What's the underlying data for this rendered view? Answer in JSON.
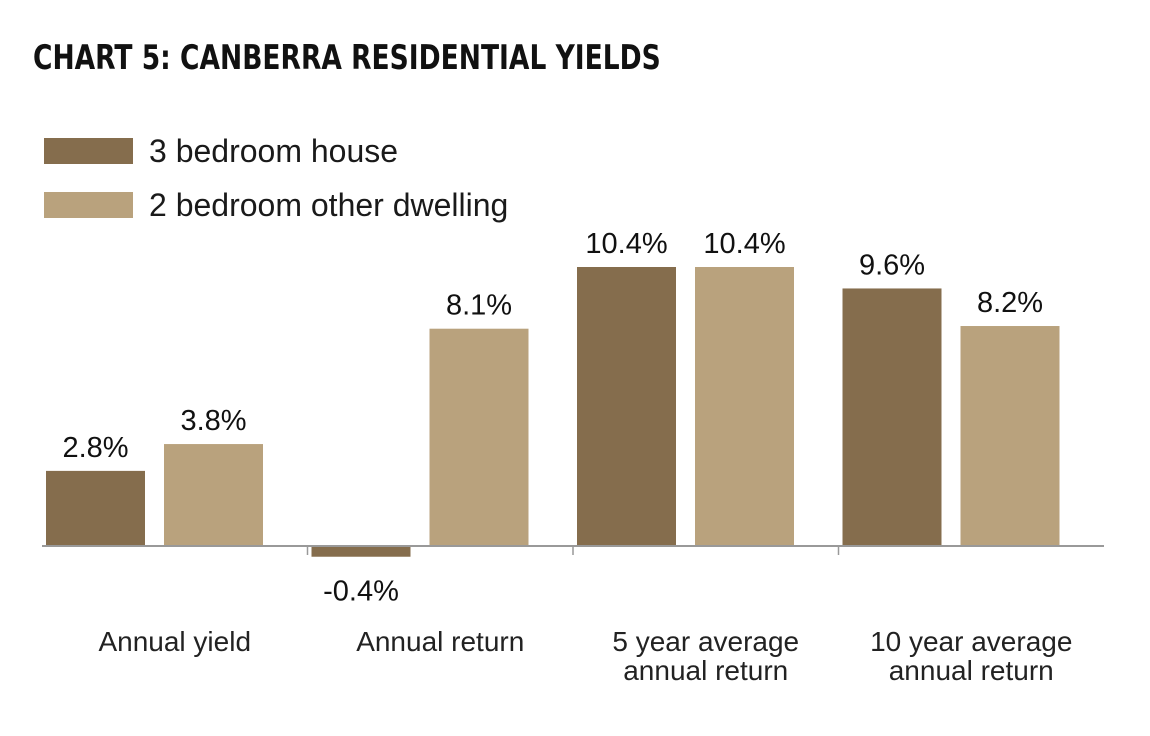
{
  "chart_data": {
    "type": "bar",
    "title": "CHART 5: CANBERRA RESIDENTIAL YIELDS",
    "categories": [
      [
        "Annual yield"
      ],
      [
        "Annual return"
      ],
      [
        "5 year average",
        "annual return"
      ],
      [
        "10 year average",
        "annual return"
      ]
    ],
    "series": [
      {
        "name": "3 bedroom house",
        "color": "#856d4d",
        "values": [
          2.8,
          -0.4,
          10.4,
          9.6
        ],
        "labels": [
          "2.8%",
          "-0.4%",
          "10.4%",
          "9.6%"
        ]
      },
      {
        "name": "2 bedroom other dwelling",
        "color": "#b9a27d",
        "values": [
          3.8,
          8.1,
          10.4,
          8.2
        ],
        "labels": [
          "3.8%",
          "8.1%",
          "10.4%",
          "8.2%"
        ]
      }
    ],
    "xlabel": "",
    "ylabel": "",
    "unit": "%",
    "grid": false,
    "legend": "top-left",
    "axis_color": "#999999"
  }
}
